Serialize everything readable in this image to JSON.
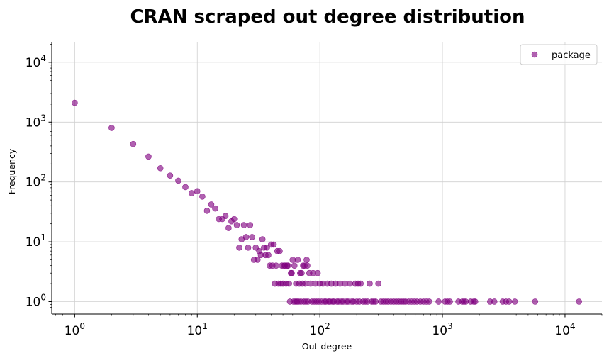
{
  "chart_data": {
    "type": "scatter",
    "title": "CRAN scraped out degree distribution",
    "xlabel": "Out degree",
    "ylabel": "Frequency",
    "xscale": "log",
    "yscale": "log",
    "xlim": [
      0.65,
      20000
    ],
    "ylim": [
      0.62,
      22000
    ],
    "grid": true,
    "legend_position": "top-right",
    "x_ticks": [
      {
        "base": "10",
        "exp": "0",
        "value": 1
      },
      {
        "base": "10",
        "exp": "1",
        "value": 10
      },
      {
        "base": "10",
        "exp": "2",
        "value": 100
      },
      {
        "base": "10",
        "exp": "3",
        "value": 1000
      },
      {
        "base": "10",
        "exp": "4",
        "value": 10000
      }
    ],
    "y_ticks": [
      {
        "base": "10",
        "exp": "0",
        "value": 1
      },
      {
        "base": "10",
        "exp": "1",
        "value": 10
      },
      {
        "base": "10",
        "exp": "2",
        "value": 100
      },
      {
        "base": "10",
        "exp": "3",
        "value": 1000
      },
      {
        "base": "10",
        "exp": "4",
        "value": 10000
      }
    ],
    "series": [
      {
        "name": "package",
        "color": "#800080",
        "points": [
          [
            1,
            2100
          ],
          [
            2,
            800
          ],
          [
            3,
            430
          ],
          [
            4,
            265
          ],
          [
            5,
            170
          ],
          [
            6,
            128
          ],
          [
            7,
            105
          ],
          [
            8,
            82
          ],
          [
            9,
            65
          ],
          [
            10,
            70
          ],
          [
            11,
            57
          ],
          [
            12,
            33
          ],
          [
            13,
            42
          ],
          [
            14,
            36
          ],
          [
            15,
            24
          ],
          [
            16,
            24
          ],
          [
            17,
            27
          ],
          [
            18,
            17
          ],
          [
            19,
            22
          ],
          [
            20,
            24
          ],
          [
            21,
            19
          ],
          [
            22,
            8
          ],
          [
            23,
            11
          ],
          [
            24,
            19
          ],
          [
            25,
            12
          ],
          [
            26,
            8
          ],
          [
            27,
            19
          ],
          [
            28,
            12
          ],
          [
            29,
            5
          ],
          [
            30,
            8
          ],
          [
            31,
            5
          ],
          [
            32,
            7
          ],
          [
            33,
            6
          ],
          [
            34,
            11
          ],
          [
            35,
            8
          ],
          [
            36,
            6
          ],
          [
            37,
            8
          ],
          [
            38,
            6
          ],
          [
            39,
            4
          ],
          [
            40,
            9
          ],
          [
            41,
            4
          ],
          [
            42,
            9
          ],
          [
            43,
            2
          ],
          [
            44,
            4
          ],
          [
            45,
            7
          ],
          [
            46,
            2
          ],
          [
            47,
            7
          ],
          [
            48,
            2
          ],
          [
            49,
            4
          ],
          [
            50,
            2
          ],
          [
            51,
            4
          ],
          [
            52,
            4
          ],
          [
            53,
            2
          ],
          [
            54,
            4
          ],
          [
            55,
            4
          ],
          [
            56,
            2
          ],
          [
            57,
            1
          ],
          [
            58,
            3
          ],
          [
            59,
            3
          ],
          [
            60,
            5
          ],
          [
            61,
            1
          ],
          [
            62,
            4
          ],
          [
            63,
            1
          ],
          [
            64,
            2
          ],
          [
            65,
            1
          ],
          [
            66,
            5
          ],
          [
            67,
            1
          ],
          [
            68,
            2
          ],
          [
            69,
            3
          ],
          [
            70,
            1
          ],
          [
            71,
            3
          ],
          [
            72,
            2
          ],
          [
            73,
            4
          ],
          [
            74,
            1
          ],
          [
            75,
            4
          ],
          [
            76,
            2
          ],
          [
            77,
            1
          ],
          [
            78,
            5
          ],
          [
            79,
            4
          ],
          [
            80,
            1
          ],
          [
            82,
            3
          ],
          [
            84,
            2
          ],
          [
            86,
            1
          ],
          [
            88,
            3
          ],
          [
            90,
            1
          ],
          [
            92,
            2
          ],
          [
            94,
            1
          ],
          [
            96,
            3
          ],
          [
            98,
            1
          ],
          [
            100,
            2
          ],
          [
            103,
            1
          ],
          [
            106,
            2
          ],
          [
            109,
            1
          ],
          [
            112,
            1
          ],
          [
            115,
            2
          ],
          [
            118,
            1
          ],
          [
            121,
            1
          ],
          [
            124,
            2
          ],
          [
            127,
            1
          ],
          [
            130,
            1
          ],
          [
            134,
            2
          ],
          [
            138,
            1
          ],
          [
            142,
            1
          ],
          [
            146,
            2
          ],
          [
            150,
            1
          ],
          [
            155,
            1
          ],
          [
            160,
            2
          ],
          [
            165,
            1
          ],
          [
            170,
            1
          ],
          [
            176,
            2
          ],
          [
            182,
            1
          ],
          [
            188,
            1
          ],
          [
            195,
            2
          ],
          [
            200,
            1
          ],
          [
            205,
            2
          ],
          [
            210,
            1
          ],
          [
            215,
            2
          ],
          [
            225,
            1
          ],
          [
            235,
            1
          ],
          [
            245,
            1
          ],
          [
            255,
            2
          ],
          [
            265,
            1
          ],
          [
            275,
            1
          ],
          [
            285,
            1
          ],
          [
            300,
            2
          ],
          [
            315,
            1
          ],
          [
            330,
            1
          ],
          [
            345,
            1
          ],
          [
            360,
            1
          ],
          [
            380,
            1
          ],
          [
            400,
            1
          ],
          [
            420,
            1
          ],
          [
            440,
            1
          ],
          [
            460,
            1
          ],
          [
            480,
            1
          ],
          [
            500,
            1
          ],
          [
            530,
            1
          ],
          [
            560,
            1
          ],
          [
            590,
            1
          ],
          [
            620,
            1
          ],
          [
            660,
            1
          ],
          [
            700,
            1
          ],
          [
            740,
            1
          ],
          [
            780,
            1
          ],
          [
            930,
            1
          ],
          [
            1050,
            1
          ],
          [
            1100,
            1
          ],
          [
            1150,
            1
          ],
          [
            1350,
            1
          ],
          [
            1450,
            1
          ],
          [
            1500,
            1
          ],
          [
            1550,
            1
          ],
          [
            1700,
            1
          ],
          [
            1800,
            1
          ],
          [
            1850,
            1
          ],
          [
            2450,
            1
          ],
          [
            2650,
            1
          ],
          [
            3100,
            1
          ],
          [
            3300,
            1
          ],
          [
            3500,
            1
          ],
          [
            3900,
            1
          ],
          [
            5700,
            1
          ],
          [
            13000,
            1
          ]
        ]
      }
    ]
  }
}
